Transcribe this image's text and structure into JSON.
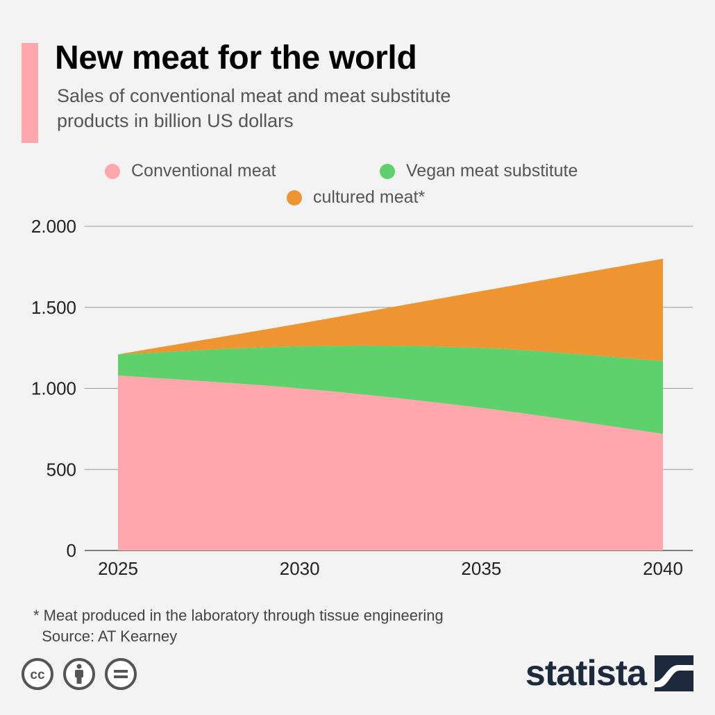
{
  "header": {
    "title": "New meat for the world",
    "subtitle": "Sales of conventional meat and meat substitute products in billion US dollars",
    "accent_color": "#ffa7ad"
  },
  "legend": [
    {
      "label": "Conventional meat",
      "color": "#ffa7ad"
    },
    {
      "label": "Vegan meat substitute",
      "color": "#5fd16c"
    },
    {
      "label": "cultured meat*",
      "color": "#ee9430"
    }
  ],
  "chart_data": {
    "type": "area",
    "stacked": true,
    "categories": [
      "2025",
      "2030",
      "2035",
      "2040"
    ],
    "x": [
      2025,
      2030,
      2035,
      2040
    ],
    "series": [
      {
        "name": "Conventional meat",
        "values": [
          1080,
          1000,
          880,
          720
        ],
        "color": "#ffa7ad"
      },
      {
        "name": "Vegan meat substitute",
        "values": [
          130,
          260,
          370,
          450
        ],
        "color": "#5fd16c"
      },
      {
        "name": "cultured meat*",
        "values": [
          0,
          140,
          350,
          630
        ],
        "color": "#ee9430"
      }
    ],
    "ylim": [
      0,
      2000
    ],
    "yticks": [
      0,
      500,
      1000,
      1500,
      2000
    ],
    "ytick_labels": [
      "0",
      "500",
      "1.000",
      "1.500",
      "2.000"
    ],
    "grid": true,
    "legend_position": "top-center"
  },
  "footer": {
    "note": "* Meat produced in the laboratory through tissue engineering",
    "source": "Source: AT Kearney",
    "brand": "statista",
    "license_icons": [
      "creative-commons-icon",
      "attribution-icon",
      "no-derivatives-icon"
    ]
  }
}
